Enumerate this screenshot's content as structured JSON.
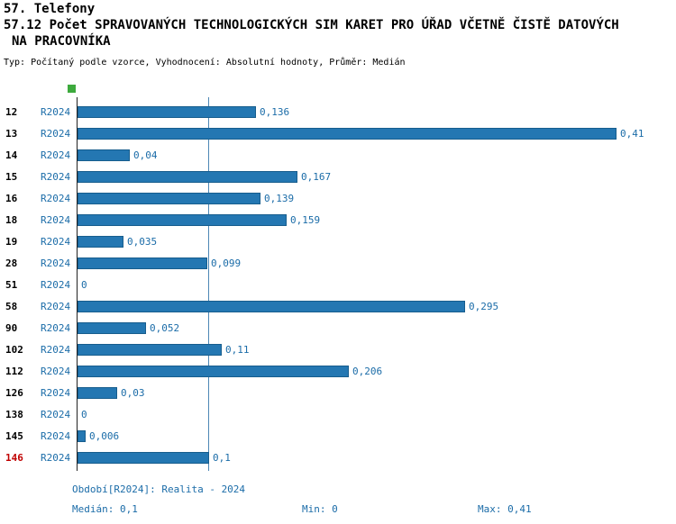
{
  "header": {
    "title_line1": "57. Telefony",
    "title_line2": "57.12 Počet SPRAVOVANÝCH TECHNOLOGICKÝCH SIM KARET PRO ÚŘAD VČETNĚ ČISTĚ DATOVÝCH",
    "title_line3": "NA PRACOVNÍKA",
    "subtitle": "Typ: Počítaný podle vzorce, Vyhodnocení: Absolutní hodnoty, Průměr: Medián"
  },
  "colors": {
    "accent_text": "#1b6ca8",
    "bar_fill": "#2477b2",
    "bar_border": "#175d8d",
    "highlight_row": "#c00000",
    "legend_green": "#3daa3d",
    "median_line": "#4d87b5"
  },
  "chart_data": {
    "type": "bar",
    "orientation": "horizontal",
    "title": "57.12 Počet SPRAVOVANÝCH TECHNOLOGICKÝCH SIM KARET PRO ÚŘAD VČETNĚ ČISTĚ DATOVÝCH NA PRACOVNÍKA",
    "series_label": "R2024",
    "categories": [
      "12",
      "13",
      "14",
      "15",
      "16",
      "18",
      "19",
      "28",
      "51",
      "58",
      "90",
      "102",
      "112",
      "126",
      "138",
      "145",
      "146"
    ],
    "values": [
      0.136,
      0.41,
      0.04,
      0.167,
      0.139,
      0.159,
      0.035,
      0.099,
      0,
      0.295,
      0.052,
      0.11,
      0.206,
      0.03,
      0,
      0.006,
      0.1
    ],
    "value_labels": [
      "0,136",
      "0,41",
      "0,04",
      "0,167",
      "0,139",
      "0,159",
      "0,035",
      "0,099",
      "0",
      "0,295",
      "0,052",
      "0,11",
      "0,206",
      "0,03",
      "0",
      "0,006",
      "0,1"
    ],
    "highlighted_category": "146",
    "xlim": [
      0,
      0.425
    ],
    "median_line": 0.1,
    "grid": false,
    "legend_position": "none"
  },
  "footer": {
    "period": "Období[R2024]: Realita - 2024",
    "median": "Medián: 0,1",
    "min": "Min: 0",
    "max": "Max: 0,41"
  }
}
